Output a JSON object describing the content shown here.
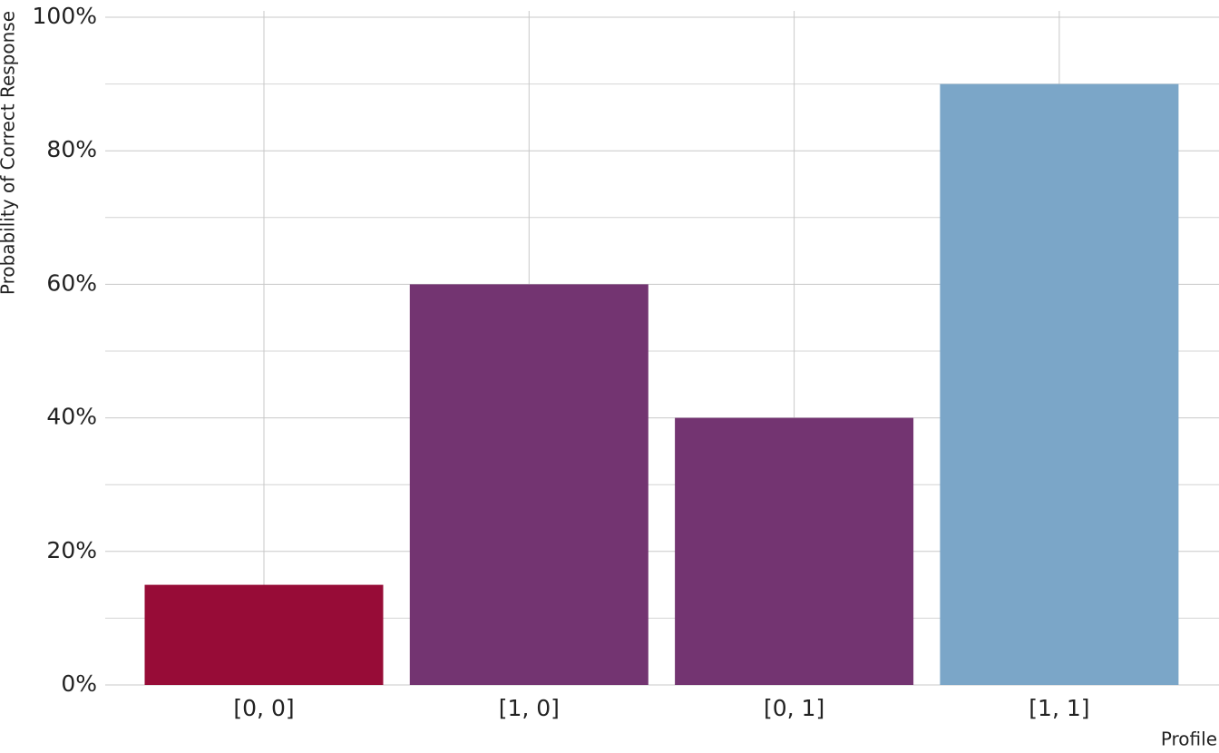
{
  "chart_data": {
    "type": "bar",
    "y_axis_label": "Probability of Correct Response",
    "x_axis_label": "Profile",
    "categories": [
      "[0, 0]",
      "[1, 0]",
      "[0, 1]",
      "[1, 1]"
    ],
    "values": [
      15,
      60,
      40,
      90
    ],
    "colors": [
      "#970c37",
      "#733471",
      "#733471",
      "#7ba6c8"
    ],
    "ylim": [
      0,
      100
    ],
    "yticks": [
      {
        "value": 0,
        "label": "0%"
      },
      {
        "value": 20,
        "label": "20%"
      },
      {
        "value": 40,
        "label": "40%"
      },
      {
        "value": 60,
        "label": "60%"
      },
      {
        "value": 80,
        "label": "80%"
      },
      {
        "value": 100,
        "label": "100%"
      }
    ],
    "y_minor_ticks": [
      10,
      30,
      50,
      70,
      90
    ],
    "grid": true
  }
}
